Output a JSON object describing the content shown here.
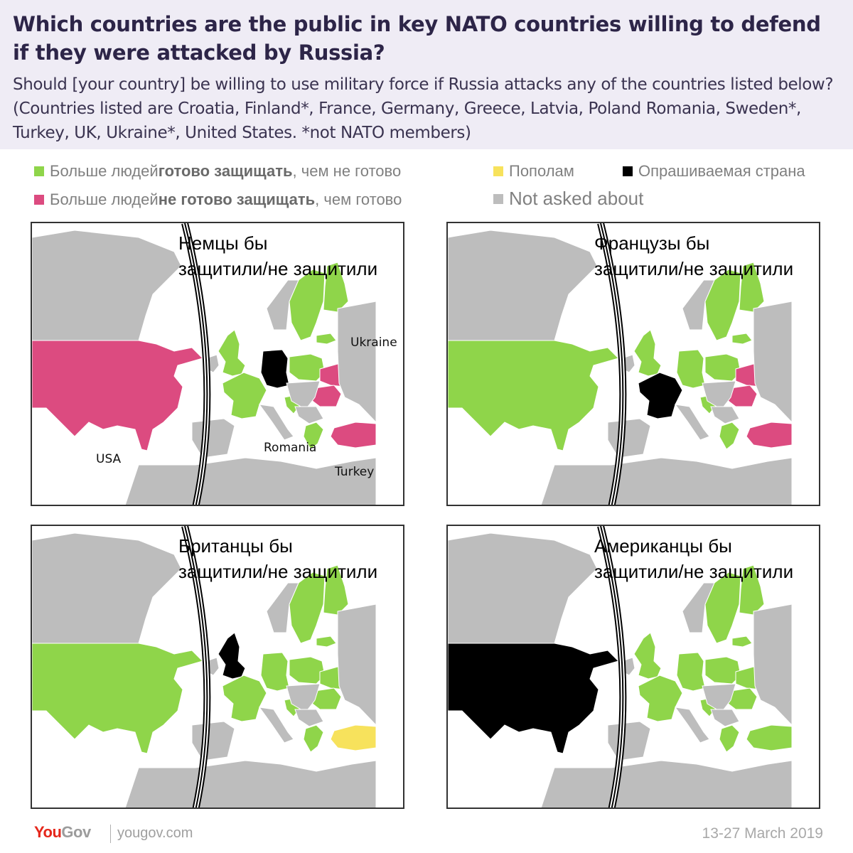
{
  "header": {
    "title": "Which countries are the public in key NATO countries willing to defend if they were attacked by Russia?",
    "subtitle": "Should [your country] be willing to use military force if Russia attacks any of the countries listed below? (Countries listed are Croatia, Finland*, France, Germany, Greece, Latvia, Poland Romania, Sweden*, Turkey, UK, Ukraine*, United States.   *not NATO members)"
  },
  "colors": {
    "willing": "#8fd54a",
    "unwilling": "#dc4b80",
    "split": "#f7e25c",
    "surveyed": "#000000",
    "not_asked": "#bdbdbd",
    "sea": "#ffffff"
  },
  "legend": {
    "willing": {
      "pre": "Больше людей ",
      "bold": "готово защищать",
      "post": ", чем не готово"
    },
    "unwilling": {
      "pre": "Больше людей ",
      "bold": "не готово защищать",
      "post": ", чем готово"
    },
    "split": "Пополам",
    "surveyed": "Опрашиваемая страна",
    "not_asked": "Not asked about"
  },
  "panels": [
    {
      "title_line1": "Немцы бы",
      "title_line2": "защитили/не защитили",
      "surveyed_country": "Germany",
      "annotations": {
        "usa": "USA",
        "ukraine": "Ukraine",
        "romania": "Romania",
        "turkey": "Turkey"
      }
    },
    {
      "title_line1": "Французы бы",
      "title_line2": "защитили/не защитили",
      "surveyed_country": "France"
    },
    {
      "title_line1": "Британцы бы",
      "title_line2": "защитили/не защитили",
      "surveyed_country": "UK"
    },
    {
      "title_line1": "Американцы бы",
      "title_line2": "защитили/не защитили",
      "surveyed_country": "United States"
    }
  ],
  "chart_data": {
    "type": "choropleth",
    "title": "Which countries are the public in key NATO countries willing to defend if they were attacked by Russia?",
    "categories": [
      "willing",
      "unwilling",
      "split",
      "surveyed",
      "not_asked"
    ],
    "maps": [
      {
        "respondents": "Germany",
        "willing": [
          "UK",
          "France",
          "Poland",
          "Latvia",
          "Sweden",
          "Finland",
          "Croatia",
          "Greece"
        ],
        "unwilling": [
          "United States",
          "Ukraine",
          "Romania",
          "Turkey"
        ],
        "split": []
      },
      {
        "respondents": "France",
        "willing": [
          "United States",
          "UK",
          "Germany",
          "Poland",
          "Latvia",
          "Sweden",
          "Finland",
          "Croatia",
          "Greece"
        ],
        "unwilling": [
          "Ukraine",
          "Romania",
          "Turkey"
        ],
        "split": []
      },
      {
        "respondents": "UK",
        "willing": [
          "United States",
          "France",
          "Germany",
          "Poland",
          "Latvia",
          "Sweden",
          "Finland",
          "Croatia",
          "Greece",
          "Ukraine",
          "Romania"
        ],
        "unwilling": [],
        "split": [
          "Turkey"
        ]
      },
      {
        "respondents": "United States",
        "willing": [
          "UK",
          "France",
          "Germany",
          "Poland",
          "Latvia",
          "Sweden",
          "Finland",
          "Croatia",
          "Greece",
          "Ukraine",
          "Romania",
          "Turkey"
        ],
        "unwilling": [],
        "split": []
      }
    ]
  },
  "footer": {
    "logo_you": "You",
    "logo_gov": "Gov",
    "site": "yougov.com",
    "date": "13-27 March 2019"
  }
}
